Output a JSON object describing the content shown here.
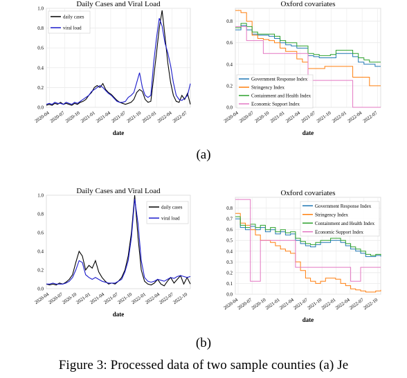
{
  "panels": [
    {
      "label": "(a)",
      "charts": [
        {
          "type": "line",
          "title": "Daily Cases and Viral Load",
          "xlabel": "date",
          "ylabel": "",
          "x_ticks": [
            "2020-04",
            "2020-07",
            "2020-10",
            "2021-01",
            "2021-04",
            "2021-07",
            "2021-10",
            "2022-01",
            "2022-04",
            "2022-07"
          ],
          "y_ticks": [
            "0.0",
            "0.2",
            "0.4",
            "0.6",
            "0.8",
            "1.0"
          ],
          "ylim": [
            0,
            1.0
          ],
          "grid": true,
          "legend_position": "top-left",
          "series": [
            {
              "name": "daily cases",
              "color": "#000000",
              "values": [
                0.02,
                0.03,
                0.02,
                0.04,
                0.03,
                0.05,
                0.03,
                0.04,
                0.03,
                0.02,
                0.04,
                0.03,
                0.05,
                0.06,
                0.08,
                0.12,
                0.15,
                0.2,
                0.22,
                0.2,
                0.24,
                0.18,
                0.15,
                0.13,
                0.1,
                0.07,
                0.05,
                0.04,
                0.03,
                0.04,
                0.05,
                0.08,
                0.15,
                0.18,
                0.16,
                0.08,
                0.05,
                0.06,
                0.3,
                0.55,
                0.8,
                0.98,
                0.72,
                0.45,
                0.25,
                0.12,
                0.06,
                0.05,
                0.12,
                0.08,
                0.14,
                0.03
              ]
            },
            {
              "name": "viral load",
              "color": "#1a1acc",
              "values": [
                0.03,
                0.04,
                0.03,
                0.05,
                0.04,
                0.04,
                0.03,
                0.05,
                0.04,
                0.03,
                0.05,
                0.04,
                0.06,
                0.08,
                0.1,
                0.12,
                0.16,
                0.18,
                0.2,
                0.22,
                0.2,
                0.17,
                0.14,
                0.12,
                0.09,
                0.06,
                0.05,
                0.05,
                0.06,
                0.1,
                0.12,
                0.15,
                0.25,
                0.35,
                0.2,
                0.12,
                0.1,
                0.12,
                0.45,
                0.7,
                0.9,
                0.82,
                0.65,
                0.55,
                0.42,
                0.25,
                0.12,
                0.08,
                0.07,
                0.09,
                0.12,
                0.24
              ]
            }
          ]
        },
        {
          "type": "line",
          "title": "Oxford covariates",
          "xlabel": "date",
          "ylabel": "",
          "x_ticks": [
            "2020-04",
            "2020-07",
            "2020-10",
            "2021-01",
            "2021-04",
            "2021-07",
            "2021-10",
            "2022-01",
            "2022-04",
            "2022-07"
          ],
          "y_ticks": [
            "0.0",
            "0.2",
            "0.4",
            "0.6",
            "0.8"
          ],
          "ylim": [
            0,
            0.92
          ],
          "grid": true,
          "legend_position": "bottom-left",
          "series": [
            {
              "name": "Government Response Index",
              "color": "#1f77b4",
              "values": [
                0.72,
                0.76,
                0.72,
                0.68,
                0.67,
                0.67,
                0.66,
                0.64,
                0.6,
                0.58,
                0.57,
                0.55,
                0.55,
                0.48,
                0.47,
                0.46,
                0.46,
                0.46,
                0.5,
                0.5,
                0.5,
                0.47,
                0.42,
                0.4,
                0.4,
                0.38,
                0.38
              ]
            },
            {
              "name": "Stringency Index",
              "color": "#ff7f0e",
              "values": [
                0.9,
                0.88,
                0.8,
                0.67,
                0.64,
                0.63,
                0.62,
                0.6,
                0.55,
                0.52,
                0.52,
                0.45,
                0.42,
                0.36,
                0.36,
                0.36,
                0.38,
                0.38,
                0.38,
                0.38,
                0.38,
                0.28,
                0.28,
                0.28,
                0.2,
                0.2,
                0.2
              ]
            },
            {
              "name": "Containment and Health Index",
              "color": "#2ca02c",
              "values": [
                0.74,
                0.78,
                0.75,
                0.7,
                0.68,
                0.68,
                0.68,
                0.66,
                0.62,
                0.6,
                0.6,
                0.57,
                0.57,
                0.5,
                0.49,
                0.48,
                0.48,
                0.49,
                0.53,
                0.53,
                0.53,
                0.5,
                0.46,
                0.44,
                0.42,
                0.42,
                0.42
              ]
            },
            {
              "name": "Economic Support Index",
              "color": "#e377c2",
              "values": [
                0.75,
                0.75,
                0.62,
                0.62,
                0.62,
                0.5,
                0.5,
                0.5,
                0.5,
                0.5,
                0.5,
                0.5,
                0.5,
                0.25,
                0.25,
                0.25,
                0.25,
                0.25,
                0.25,
                0.25,
                0.25,
                0.0,
                0.0,
                0.0,
                0.0,
                0.0,
                0.0
              ]
            }
          ]
        }
      ]
    },
    {
      "label": "(b)",
      "charts": [
        {
          "type": "line",
          "title": "Daily Cases and Viral Load",
          "xlabel": "date",
          "ylabel": "",
          "x_ticks": [
            "2020-04",
            "2020-07",
            "2020-10",
            "2021-01",
            "2021-04",
            "2021-07",
            "2021-10",
            "2022-01",
            "2022-04",
            "2022-07",
            "2022-10"
          ],
          "y_ticks": [
            "0.0",
            "0.2",
            "0.4",
            "0.6",
            "0.8",
            "1.0"
          ],
          "ylim": [
            0,
            1.0
          ],
          "grid": false,
          "legend_position": "top-right",
          "series": [
            {
              "name": "daily cases",
              "color": "#000000",
              "values": [
                0.05,
                0.04,
                0.05,
                0.04,
                0.06,
                0.05,
                0.07,
                0.1,
                0.15,
                0.28,
                0.4,
                0.35,
                0.2,
                0.25,
                0.22,
                0.3,
                0.18,
                0.12,
                0.08,
                0.05,
                0.06,
                0.05,
                0.08,
                0.12,
                0.2,
                0.35,
                0.6,
                1.0,
                0.55,
                0.2,
                0.08,
                0.05,
                0.04,
                0.06,
                0.1,
                0.05,
                0.03,
                0.08,
                0.12,
                0.06,
                0.1,
                0.14,
                0.05,
                0.12,
                0.05
              ]
            },
            {
              "name": "viral load",
              "color": "#1a1acc",
              "values": [
                0.05,
                0.05,
                0.06,
                0.05,
                0.05,
                0.05,
                0.06,
                0.08,
                0.12,
                0.2,
                0.3,
                0.28,
                0.15,
                0.12,
                0.1,
                0.12,
                0.1,
                0.08,
                0.07,
                0.06,
                0.06,
                0.06,
                0.08,
                0.1,
                0.18,
                0.3,
                0.55,
                0.96,
                0.7,
                0.3,
                0.12,
                0.08,
                0.07,
                0.08,
                0.1,
                0.09,
                0.08,
                0.1,
                0.12,
                0.11,
                0.13,
                0.14,
                0.13,
                0.12,
                0.13
              ]
            }
          ]
        },
        {
          "type": "line",
          "title": "Oxford covariates",
          "xlabel": "date",
          "ylabel": "",
          "x_ticks": [
            "2020-04",
            "2020-07",
            "2020-10",
            "2021-01",
            "2021-04",
            "2021-07",
            "2021-10",
            "2022-01",
            "2022-04",
            "2022-07",
            "2022-10"
          ],
          "y_ticks": [
            "0.0",
            "0.1",
            "0.2",
            "0.3",
            "0.4",
            "0.5",
            "0.6",
            "0.7",
            "0.8"
          ],
          "ylim": [
            0,
            0.9
          ],
          "grid": true,
          "legend_position": "top-right",
          "series": [
            {
              "name": "Government Response Index",
              "color": "#1f77b4",
              "values": [
                0.7,
                0.62,
                0.6,
                0.63,
                0.6,
                0.62,
                0.58,
                0.6,
                0.56,
                0.58,
                0.55,
                0.56,
                0.5,
                0.47,
                0.45,
                0.44,
                0.46,
                0.48,
                0.48,
                0.5,
                0.5,
                0.48,
                0.45,
                0.42,
                0.4,
                0.38,
                0.35,
                0.35,
                0.36,
                0.35
              ]
            },
            {
              "name": "Stringency Index",
              "color": "#ff7f0e",
              "values": [
                0.75,
                0.66,
                0.64,
                0.6,
                0.55,
                0.5,
                0.5,
                0.48,
                0.45,
                0.42,
                0.4,
                0.38,
                0.3,
                0.22,
                0.15,
                0.12,
                0.1,
                0.12,
                0.15,
                0.15,
                0.14,
                0.1,
                0.08,
                0.05,
                0.04,
                0.03,
                0.02,
                0.02,
                0.03,
                0.04
              ]
            },
            {
              "name": "Containment and Health Index",
              "color": "#2ca02c",
              "values": [
                0.72,
                0.64,
                0.62,
                0.65,
                0.62,
                0.64,
                0.6,
                0.62,
                0.58,
                0.6,
                0.57,
                0.58,
                0.52,
                0.49,
                0.47,
                0.46,
                0.48,
                0.5,
                0.5,
                0.52,
                0.52,
                0.5,
                0.47,
                0.44,
                0.42,
                0.4,
                0.37,
                0.36,
                0.37,
                0.36
              ]
            },
            {
              "name": "Economic Support Index",
              "color": "#e377c2",
              "values": [
                0.88,
                0.88,
                0.88,
                0.12,
                0.12,
                0.5,
                0.5,
                0.5,
                0.5,
                0.5,
                0.5,
                0.5,
                0.25,
                0.25,
                0.25,
                0.25,
                0.25,
                0.25,
                0.25,
                0.25,
                0.25,
                0.25,
                0.25,
                0.12,
                0.12,
                0.25,
                0.25,
                0.25,
                0.25,
                0.25
              ]
            }
          ]
        }
      ]
    }
  ],
  "caption": "Figure 3: Processed data of two sample counties (a) Je"
}
